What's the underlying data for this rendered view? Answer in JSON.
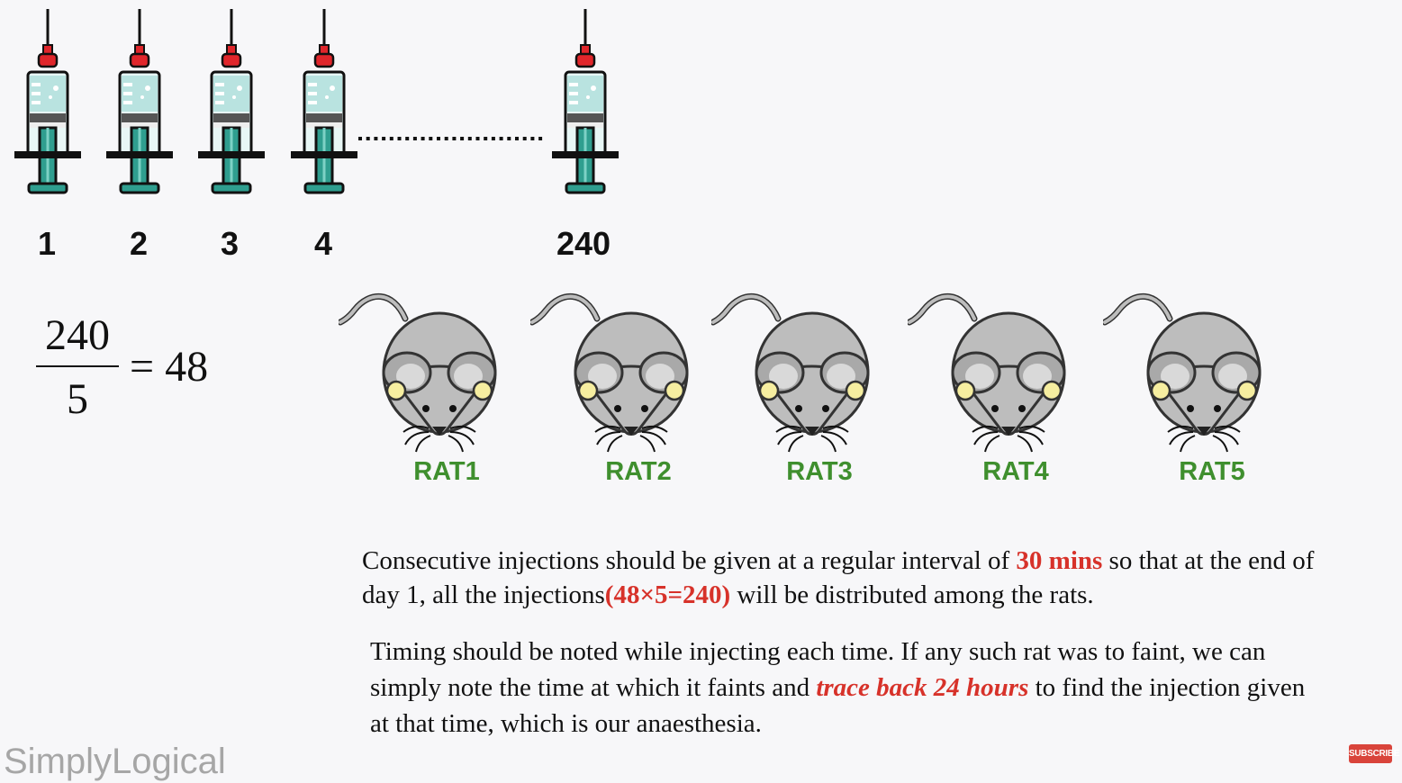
{
  "syringes": [
    {
      "label": "1"
    },
    {
      "label": "2"
    },
    {
      "label": "3"
    },
    {
      "label": "4"
    },
    {
      "label": "240"
    }
  ],
  "equation": {
    "numerator": "240",
    "denominator": "5",
    "result": "= 48"
  },
  "rats": [
    {
      "label": "RAT1"
    },
    {
      "label": "RAT2"
    },
    {
      "label": "RAT3"
    },
    {
      "label": "RAT4"
    },
    {
      "label": "RAT5"
    }
  ],
  "paragraph1": {
    "part1": "Consecutive injections should be given at a regular interval of ",
    "highlight1": "30 mins",
    "part2": " so that at the end of day 1, all the injections",
    "highlight2": "(48×5=240)",
    "part3": " will be distributed among the rats."
  },
  "paragraph2": {
    "part1": "Timing should be noted while injecting each time. If any such rat was to faint, we can simply note the time at which it faints and ",
    "highlight": "trace back 24 hours",
    "part2": " to find the injection given at that time, which is our anaesthesia."
  },
  "brand": "SimplyLogical",
  "subscribe_label": "SUBSCRIBE",
  "colors": {
    "highlight_red": "#d7322a",
    "rat_label_green": "#3f8f2e",
    "syringe_liquid": "#b9e3e0",
    "syringe_plunger": "#2f9e8f",
    "needle_cap": "#e0262b",
    "rat_body": "#bdbdbd",
    "rat_ear": "#f6eea0"
  },
  "icons": {
    "syringe": "syringe-icon",
    "rat": "rat-icon",
    "subscribe": "subscribe-button"
  }
}
